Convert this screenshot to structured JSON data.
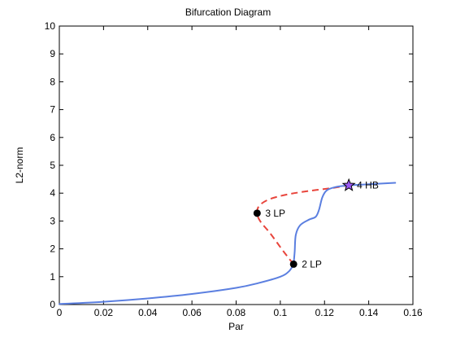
{
  "chart_data": {
    "type": "line",
    "title": "Bifurcation Diagram",
    "xlabel": "Par",
    "ylabel": "L2-norm",
    "xlim": [
      0,
      0.16
    ],
    "ylim": [
      0,
      10
    ],
    "xticks": [
      0,
      0.02,
      0.04,
      0.06,
      0.08,
      0.1,
      0.12,
      0.14,
      0.16
    ],
    "xtick_labels": [
      "0",
      "0.02",
      "0.04",
      "0.06",
      "0.08",
      "0.1",
      "0.12",
      "0.14",
      "0.16"
    ],
    "yticks": [
      0,
      1,
      2,
      3,
      4,
      5,
      6,
      7,
      8,
      9,
      10
    ],
    "ytick_labels": [
      "0",
      "1",
      "2",
      "3",
      "4",
      "5",
      "6",
      "7",
      "8",
      "9",
      "10"
    ],
    "grid": false,
    "legend": "none",
    "series": [
      {
        "style": "solid",
        "color": "#5b7fe0",
        "points": [
          [
            0,
            0.02
          ],
          [
            0.02,
            0.1
          ],
          [
            0.04,
            0.22
          ],
          [
            0.06,
            0.38
          ],
          [
            0.08,
            0.6
          ],
          [
            0.09,
            0.77
          ],
          [
            0.1,
            1.0
          ],
          [
            0.104,
            1.2
          ],
          [
            0.106,
            1.45
          ]
        ]
      },
      {
        "style": "dashed",
        "color": "#e8453c",
        "points": [
          [
            0.106,
            1.45
          ],
          [
            0.1015,
            1.9
          ],
          [
            0.0955,
            2.55
          ],
          [
            0.091,
            2.98
          ],
          [
            0.0895,
            3.28
          ],
          [
            0.0905,
            3.55
          ],
          [
            0.095,
            3.78
          ],
          [
            0.103,
            3.95
          ],
          [
            0.113,
            4.08
          ],
          [
            0.123,
            4.18
          ],
          [
            0.131,
            4.28
          ]
        ]
      },
      {
        "style": "solid",
        "color": "#5b7fe0",
        "points": [
          [
            0.106,
            1.45
          ],
          [
            0.1065,
            1.9
          ],
          [
            0.107,
            2.5
          ],
          [
            0.109,
            2.85
          ],
          [
            0.113,
            3.05
          ],
          [
            0.116,
            3.15
          ],
          [
            0.1175,
            3.4
          ],
          [
            0.119,
            3.85
          ],
          [
            0.121,
            4.1
          ],
          [
            0.125,
            4.22
          ],
          [
            0.131,
            4.28
          ],
          [
            0.14,
            4.32
          ],
          [
            0.152,
            4.37
          ]
        ]
      }
    ],
    "special_points": [
      {
        "x": 0.106,
        "y": 1.45,
        "marker": "dot",
        "label": "2  LP"
      },
      {
        "x": 0.0895,
        "y": 3.28,
        "marker": "dot",
        "label": "3  LP"
      },
      {
        "x": 0.131,
        "y": 4.28,
        "marker": "star",
        "label": "4  HB",
        "color": "#9b59f5"
      }
    ]
  }
}
